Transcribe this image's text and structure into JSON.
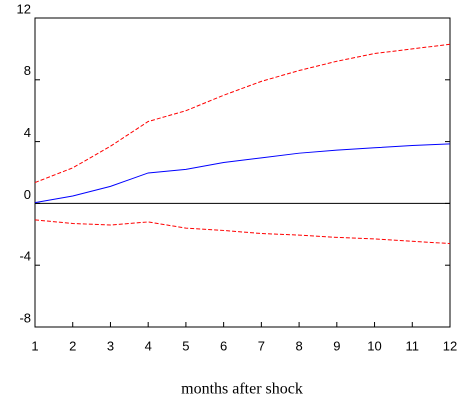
{
  "chart_data": {
    "type": "line",
    "x_label": "months after shock",
    "x": [
      1,
      2,
      3,
      4,
      5,
      6,
      7,
      8,
      9,
      10,
      11,
      12
    ],
    "xlim": [
      1,
      12
    ],
    "xticks": [
      1,
      2,
      3,
      4,
      5,
      6,
      7,
      8,
      9,
      10,
      11,
      12
    ],
    "ylim": [
      -8,
      12
    ],
    "yticks": [
      -8,
      -4,
      0,
      4,
      8,
      12
    ],
    "hline": 0,
    "series": [
      {
        "color": "#0000ff",
        "dashed": false,
        "values": [
          0.05,
          0.48,
          1.1,
          1.97,
          2.2,
          2.65,
          2.95,
          3.25,
          3.45,
          3.6,
          3.75,
          3.85
        ]
      },
      {
        "color": "#ff0000",
        "dashed": true,
        "values": [
          1.35,
          2.3,
          3.7,
          5.3,
          6.0,
          7.0,
          7.9,
          8.6,
          9.2,
          9.7,
          10.0,
          10.3
        ]
      },
      {
        "color": "#ff0000",
        "dashed": true,
        "values": [
          -1.07,
          -1.3,
          -1.4,
          -1.2,
          -1.6,
          -1.75,
          -1.95,
          -2.05,
          -2.2,
          -2.3,
          -2.45,
          -2.6
        ]
      }
    ]
  }
}
